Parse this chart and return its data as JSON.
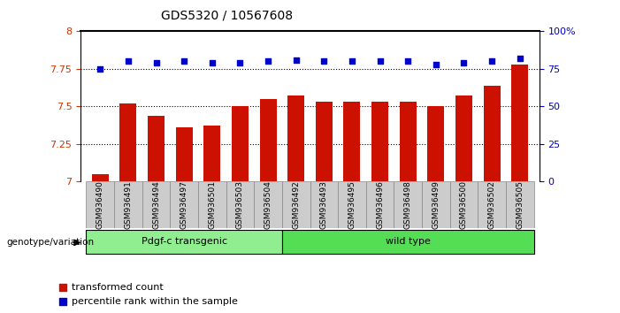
{
  "title": "GDS5320 / 10567608",
  "samples": [
    "GSM936490",
    "GSM936491",
    "GSM936494",
    "GSM936497",
    "GSM936501",
    "GSM936503",
    "GSM936504",
    "GSM936492",
    "GSM936493",
    "GSM936495",
    "GSM936496",
    "GSM936498",
    "GSM936499",
    "GSM936500",
    "GSM936502",
    "GSM936505"
  ],
  "transformed_count": [
    7.05,
    7.52,
    7.44,
    7.36,
    7.37,
    7.5,
    7.55,
    7.57,
    7.53,
    7.53,
    7.53,
    7.53,
    7.5,
    7.57,
    7.64,
    7.78
  ],
  "percentile_rank": [
    75,
    80,
    79,
    80,
    79,
    79,
    80,
    81,
    80,
    80,
    80,
    80,
    78,
    79,
    80,
    82
  ],
  "groups": [
    {
      "label": "Pdgf-c transgenic",
      "start": 0,
      "end": 6,
      "color": "#90EE90"
    },
    {
      "label": "wild type",
      "start": 7,
      "end": 15,
      "color": "#55DD55"
    }
  ],
  "ylim_left": [
    7.0,
    8.0
  ],
  "ylim_right": [
    0,
    100
  ],
  "yticks_left": [
    7.0,
    7.25,
    7.5,
    7.75,
    8.0
  ],
  "ytick_left_labels": [
    "7",
    "7.25",
    "7.5",
    "7.75",
    "8"
  ],
  "yticks_right": [
    0,
    25,
    50,
    75,
    100
  ],
  "ytick_right_labels": [
    "0",
    "25",
    "50",
    "75",
    "100%"
  ],
  "bar_color": "#CC1100",
  "scatter_color": "#0000CC",
  "bar_bottom": 7.0,
  "background_color": "#ffffff",
  "left_tick_color": "#CC3300",
  "right_tick_color": "#0000CC",
  "grid_color": "#000000",
  "xlabel_area_color": "#CCCCCC",
  "legend_items": [
    "transformed count",
    "percentile rank within the sample"
  ],
  "legend_colors": [
    "#CC1100",
    "#0000CC"
  ],
  "gridline_values": [
    7.25,
    7.5,
    7.75
  ]
}
